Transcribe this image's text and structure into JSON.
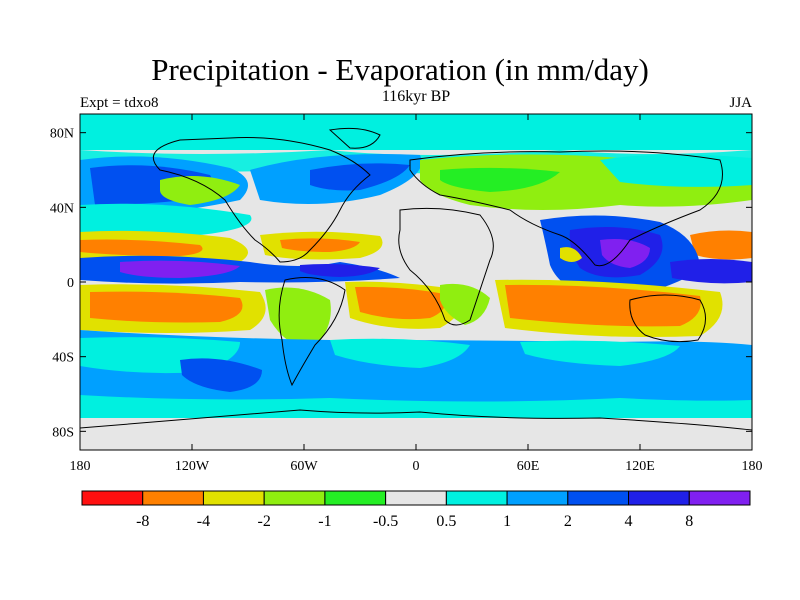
{
  "header": {
    "title": "Precipitation - Evaporation (in mm/day)",
    "subtitle": "116kyr BP",
    "left_label": "Expt = tdxo8",
    "right_label": "JJA"
  },
  "map": {
    "projection": "cylindrical-equidistant",
    "lon_range": [
      -180,
      180
    ],
    "lat_range": [
      -90,
      90
    ],
    "field_color_name": "light-gray-near-zero",
    "x_ticks": [
      {
        "lon": -180,
        "label": "180"
      },
      {
        "lon": -120,
        "label": "120W"
      },
      {
        "lon": -60,
        "label": "60W"
      },
      {
        "lon": 0,
        "label": "0"
      },
      {
        "lon": 60,
        "label": "60E"
      },
      {
        "lon": 120,
        "label": "120E"
      },
      {
        "lon": 180,
        "label": "180"
      }
    ],
    "y_ticks": [
      {
        "lat": 80,
        "label": "80N"
      },
      {
        "lat": 40,
        "label": "40N"
      },
      {
        "lat": 0,
        "label": "0"
      },
      {
        "lat": -40,
        "label": "40S"
      },
      {
        "lat": -80,
        "label": "80S"
      }
    ]
  },
  "colorbar": {
    "colors": [
      "#ff1010",
      "#ff8000",
      "#e1e100",
      "#90ee10",
      "#24ee24",
      "#e6e6e6",
      "#00f0e0",
      "#00a0ff",
      "#0050f0",
      "#2020e8",
      "#8020f0"
    ],
    "labels": [
      "-8",
      "-4",
      "-2",
      "-1",
      "-0.5",
      "0.5",
      "1",
      "2",
      "4",
      "8"
    ]
  }
}
